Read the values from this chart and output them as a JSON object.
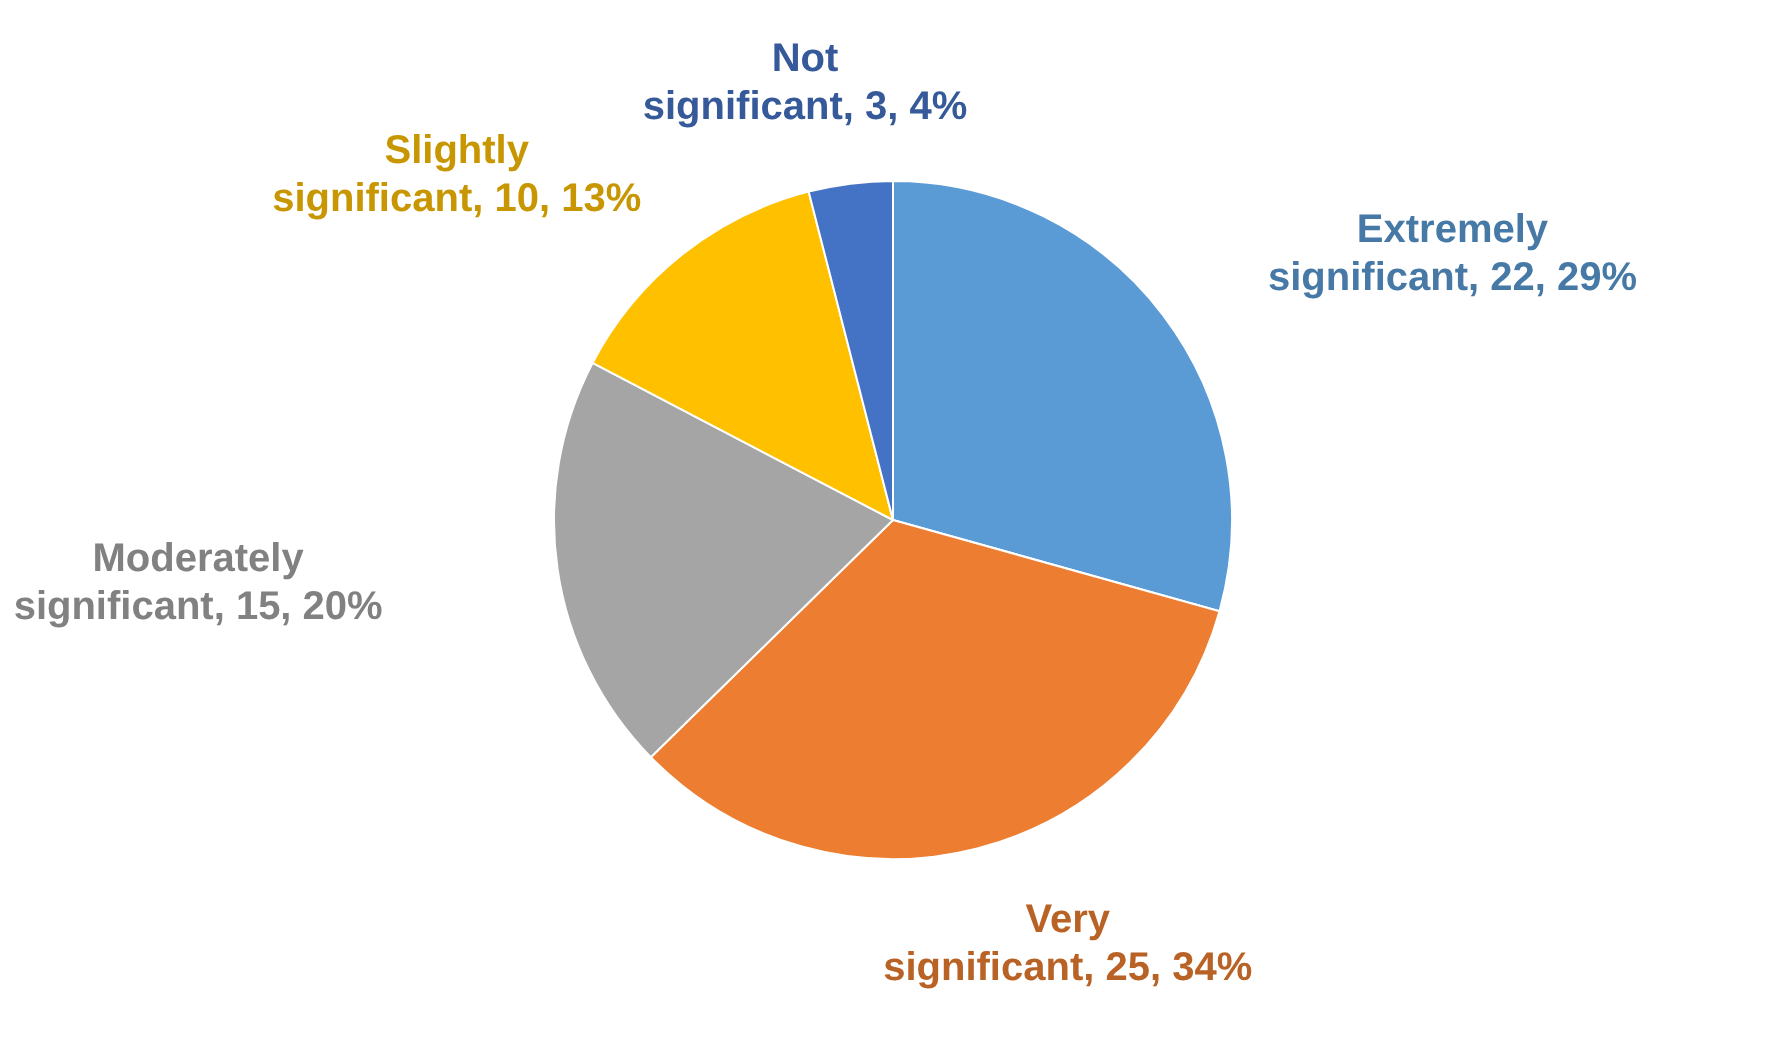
{
  "chart_data": {
    "type": "pie",
    "categories": [
      "Extremely significant",
      "Very significant",
      "Moderately significant",
      "Slightly significant",
      "Not significant"
    ],
    "values": [
      22,
      25,
      15,
      10,
      3
    ],
    "value_labels": [
      "22, 29%",
      "25, 34%",
      "15, 20%",
      "10, 13%",
      "3, 4%"
    ],
    "colors": [
      "#5b9bd5",
      "#ed7d31",
      "#a5a5a5",
      "#ffc000",
      "#4472c4"
    ],
    "legend": false
  }
}
